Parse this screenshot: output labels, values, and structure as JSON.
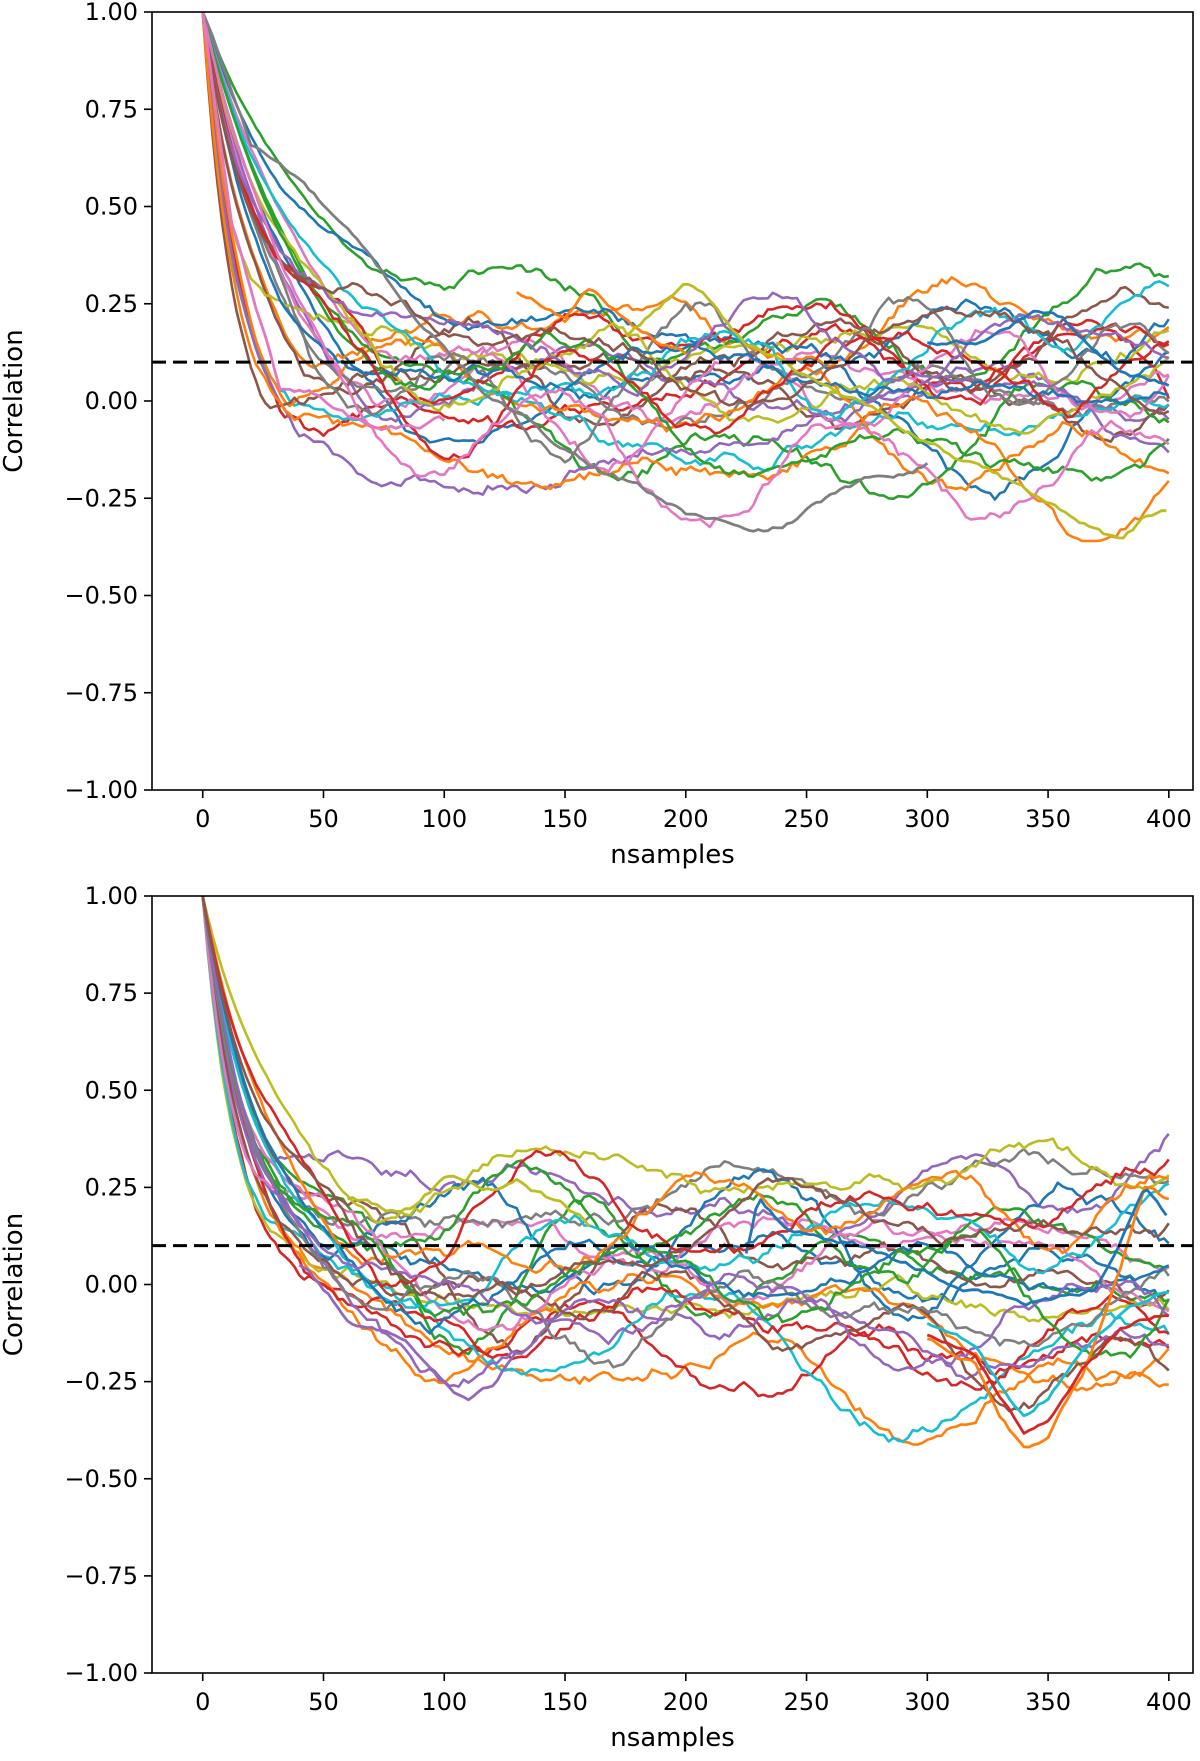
{
  "chart_data": [
    {
      "type": "line",
      "title": "",
      "xlabel": "nsamples",
      "ylabel": "Correlation",
      "xlim": [
        -21,
        410
      ],
      "ylim": [
        -1.0,
        1.0
      ],
      "x_ticks": [
        0,
        50,
        100,
        150,
        200,
        250,
        300,
        350,
        400
      ],
      "y_ticks": [
        1.0,
        0.75,
        0.5,
        0.25,
        0.0,
        -0.25,
        -0.5,
        -0.75,
        -1.0
      ],
      "x_tick_labels": [
        "0",
        "50",
        "100",
        "150",
        "200",
        "250",
        "300",
        "350",
        "400"
      ],
      "y_tick_labels": [
        "1.00",
        "0.75",
        "0.50",
        "0.25",
        "0.00",
        "−0.25",
        "−0.50",
        "−0.75",
        "−1.00"
      ],
      "threshold": {
        "y": 0.1,
        "style": "dashed",
        "color": "#000000"
      },
      "grid": false,
      "legend": "none",
      "n_series": 32,
      "series_summary": {
        "start_value": 1.0,
        "decay_to_threshold_at_x": [
          25,
          110
        ],
        "tail_range": [
          -0.36,
          0.3
        ]
      },
      "highlights": [
        {
          "color": "#7f7f7f",
          "x": [
            0,
            20,
            40,
            60,
            90,
            120,
            150,
            180,
            200,
            215,
            228,
            240,
            260,
            280,
            300
          ],
          "y": [
            1.0,
            0.66,
            0.57,
            0.43,
            0.2,
            0.0,
            -0.12,
            -0.22,
            -0.29,
            -0.31,
            -0.35,
            -0.33,
            -0.25,
            -0.2,
            -0.16
          ]
        },
        {
          "color": "#e377c2",
          "x": [
            0,
            12,
            25,
            32,
            45,
            60,
            75,
            90,
            100
          ],
          "y": [
            1.0,
            0.45,
            0.18,
            0.03,
            0.02,
            -0.04,
            -0.07,
            -0.07,
            -0.05
          ]
        },
        {
          "color": "#1f77b4",
          "x": [
            300,
            320,
            335,
            345,
            355,
            365,
            380,
            400
          ],
          "y": [
            0.15,
            0.14,
            0.2,
            0.23,
            0.21,
            0.16,
            0.07,
            0.04
          ]
        },
        {
          "color": "#ff7f0e",
          "x": [
            130,
            150,
            160,
            170,
            180,
            190,
            200
          ],
          "y": [
            0.28,
            0.22,
            0.29,
            0.24,
            0.19,
            0.15,
            0.12
          ]
        },
        {
          "color": "#bcbd22",
          "x": [
            175,
            190,
            200,
            210,
            225,
            240,
            380,
            390,
            400
          ],
          "y": [
            0.17,
            0.25,
            0.3,
            0.26,
            0.14,
            0.1,
            -0.36,
            -0.3,
            -0.28
          ]
        }
      ]
    },
    {
      "type": "line",
      "title": "",
      "xlabel": "nsamples",
      "ylabel": "Correlation",
      "xlim": [
        -21,
        410
      ],
      "ylim": [
        -1.0,
        1.0
      ],
      "x_ticks": [
        0,
        50,
        100,
        150,
        200,
        250,
        300,
        350,
        400
      ],
      "y_ticks": [
        1.0,
        0.75,
        0.5,
        0.25,
        0.0,
        -0.25,
        -0.5,
        -0.75,
        -1.0
      ],
      "x_tick_labels": [
        "0",
        "50",
        "100",
        "150",
        "200",
        "250",
        "300",
        "350",
        "400"
      ],
      "y_tick_labels": [
        "1.00",
        "0.75",
        "0.50",
        "0.25",
        "0.00",
        "−0.25",
        "−0.50",
        "−0.75",
        "−1.00"
      ],
      "threshold": {
        "y": 0.1,
        "style": "dashed",
        "color": "#000000"
      },
      "grid": false,
      "legend": "none",
      "n_series": 32,
      "series_summary": {
        "start_value": 1.0,
        "decay_to_threshold_at_x": [
          30,
          65
        ],
        "tail_range": [
          -0.43,
          0.27
        ]
      },
      "highlights": [
        {
          "color": "#9467bd",
          "x": [
            40,
            60,
            80,
            95,
            105,
            110,
            120,
            130
          ],
          "y": [
            0.05,
            -0.08,
            -0.12,
            -0.2,
            -0.26,
            -0.29,
            -0.26,
            -0.17
          ]
        },
        {
          "color": "#ff7f0e",
          "x": [
            300,
            320,
            330,
            340,
            350,
            365,
            380,
            390,
            400
          ],
          "y": [
            -0.14,
            -0.2,
            -0.33,
            -0.42,
            -0.4,
            -0.22,
            0.05,
            0.26,
            0.22
          ]
        },
        {
          "color": "#d62728",
          "x": [
            300,
            320,
            330,
            340,
            350,
            365,
            380,
            400
          ],
          "y": [
            -0.13,
            -0.19,
            -0.3,
            -0.38,
            -0.35,
            -0.22,
            -0.12,
            -0.08
          ]
        },
        {
          "color": "#17becf",
          "x": [
            300,
            320,
            330,
            340,
            350,
            365,
            380,
            400
          ],
          "y": [
            -0.1,
            -0.16,
            -0.25,
            -0.33,
            -0.28,
            -0.17,
            -0.08,
            -0.02
          ]
        },
        {
          "color": "#1f77b4",
          "x": [
            225,
            230,
            240,
            255,
            270,
            290,
            310,
            340,
            370,
            390,
            400
          ],
          "y": [
            0.08,
            0.22,
            0.15,
            0.12,
            0.1,
            0.05,
            0.0,
            -0.05,
            -0.02,
            0.25,
            0.17
          ]
        },
        {
          "color": "#bcbd22",
          "x": [
            60,
            80,
            90,
            100,
            120,
            130,
            150,
            160
          ],
          "y": [
            0.22,
            0.19,
            0.21,
            0.27,
            0.25,
            0.27,
            0.2,
            0.15
          ]
        }
      ]
    }
  ]
}
